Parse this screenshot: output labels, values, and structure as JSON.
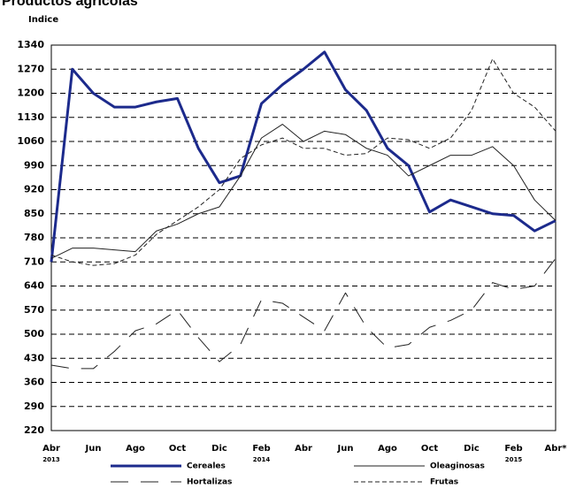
{
  "chart_data": {
    "type": "line",
    "title": "Productos agrícolas",
    "ylabel": "Indice",
    "categories": [
      "Abr",
      null,
      "Jun",
      null,
      "Ago",
      null,
      "Oct",
      null,
      "Dic",
      null,
      "Feb",
      null,
      "Abr",
      null,
      "Jun",
      null,
      "Ago",
      null,
      "Oct",
      null,
      "Dic",
      null,
      "Feb",
      null,
      "Abr*"
    ],
    "year_labels": [
      {
        "index": 0,
        "label": "2013"
      },
      {
        "index": 10,
        "label": "2014"
      },
      {
        "index": 22,
        "label": "2015"
      }
    ],
    "ylim": [
      220,
      1340
    ],
    "yticks": [
      220,
      290,
      360,
      430,
      500,
      570,
      640,
      710,
      780,
      850,
      920,
      990,
      1060,
      1130,
      1200,
      1270,
      1340
    ],
    "grid": true,
    "series": [
      {
        "name": "Cereales",
        "color": "#1c2a8c",
        "style": "thick",
        "values": [
          710,
          1270,
          1200,
          1160,
          1160,
          1175,
          1185,
          1040,
          940,
          960,
          1170,
          1225,
          1270,
          1320,
          1210,
          1150,
          1040,
          990,
          855,
          890,
          870,
          850,
          845,
          800,
          830
        ]
      },
      {
        "name": "Oleaginosas",
        "color": "#222222",
        "style": "solid",
        "values": [
          720,
          750,
          750,
          745,
          740,
          800,
          820,
          850,
          870,
          960,
          1070,
          1110,
          1060,
          1090,
          1080,
          1040,
          1020,
          960,
          990,
          1020,
          1020,
          1045,
          990,
          890,
          830
        ]
      },
      {
        "name": "Hortalizas",
        "color": "#222222",
        "style": "longdash",
        "values": [
          410,
          400,
          400,
          450,
          510,
          530,
          570,
          490,
          420,
          470,
          600,
          590,
          550,
          510,
          620,
          520,
          460,
          470,
          520,
          540,
          570,
          650,
          630,
          640,
          720
        ]
      },
      {
        "name": "Frutas",
        "color": "#222222",
        "style": "dash",
        "values": [
          730,
          710,
          700,
          705,
          730,
          790,
          830,
          870,
          920,
          1010,
          1050,
          1070,
          1040,
          1040,
          1020,
          1025,
          1070,
          1065,
          1040,
          1070,
          1150,
          1300,
          1200,
          1160,
          1090
        ]
      }
    ]
  }
}
